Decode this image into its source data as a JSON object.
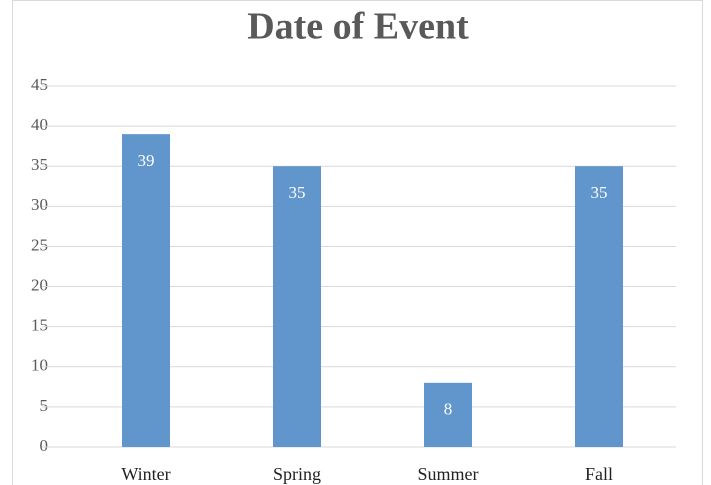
{
  "chart_data": {
    "type": "bar",
    "title": "Date of Event",
    "categories": [
      "Winter",
      "Spring",
      "Summer",
      "Fall"
    ],
    "values": [
      39,
      35,
      8,
      35
    ],
    "color": "#6096cc",
    "ylim": [
      0,
      45
    ],
    "yticks": [
      0,
      5,
      10,
      15,
      20,
      25,
      30,
      35,
      40,
      45
    ],
    "grid": true
  }
}
